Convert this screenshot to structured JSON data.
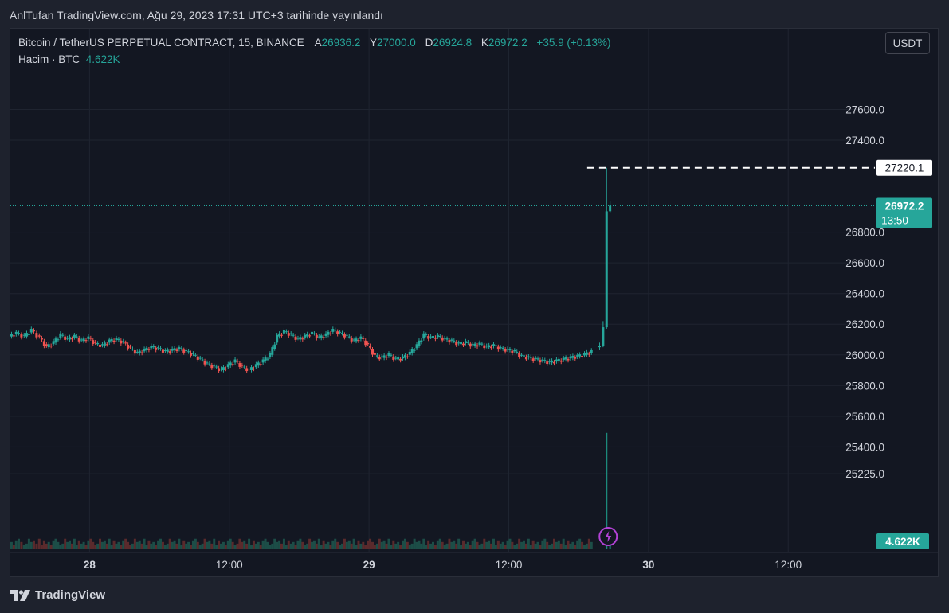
{
  "publish_line": "AnlTufan TradingView.com, Ağu 29, 2023 17:31 UTC+3 tarihinde yayınlandı",
  "legend": {
    "symbol": "Bitcoin / TetherUS PERPETUAL CONTRACT, 15, BINANCE",
    "open_label": "A",
    "open": "26936.2",
    "high_label": "Y",
    "high": "27000.0",
    "low_label": "D",
    "low": "26924.8",
    "close_label": "K",
    "close": "26972.2",
    "change": "+35.9 (+0.13%)",
    "volume_label": "Hacim · BTC",
    "volume": "4.622K"
  },
  "currency": "USDT",
  "brand": "TradingView",
  "colors": {
    "up": "#26a69a",
    "down": "#ef5350",
    "background": "#131722",
    "grid": "#1f2430",
    "text": "#d1d4dc",
    "alert_icon": "#b342d6"
  },
  "chart_data": {
    "type": "candlestick",
    "symbol": "BTCUSDT.P",
    "interval": "15",
    "exchange": "BINANCE",
    "price_ticks": [
      "27600.0",
      "27400.0",
      "26800.0",
      "26600.0",
      "26400.0",
      "26200.0",
      "26000.0",
      "25800.0",
      "25600.0",
      "25400.0",
      "25225.0"
    ],
    "price_tick_values": [
      27600,
      27400,
      26800,
      26600,
      26400,
      26200,
      26000,
      25800,
      25600,
      25400,
      25225
    ],
    "time_ticks": [
      "28",
      "12:00",
      "29",
      "12:00",
      "30",
      "12:00"
    ],
    "time_tick_hours": [
      0,
      12,
      24,
      36,
      48,
      60
    ],
    "x_range_hours": [
      -6.8,
      67.1
    ],
    "y_range": [
      24805,
      27805
    ],
    "last_price": 26972.2,
    "last_price_label": "26972.2",
    "countdown": "13:50",
    "high_line_price": 27220.1,
    "high_line_label": "27220.1",
    "volume_last_label": "4.622K",
    "grid": true,
    "price_path": [
      [
        -6.8,
        26120
      ],
      [
        -6.2,
        26140
      ],
      [
        -5.5,
        26120
      ],
      [
        -4.9,
        26160
      ],
      [
        -4.2,
        26110
      ],
      [
        -3.6,
        26050
      ],
      [
        -3.0,
        26080
      ],
      [
        -2.4,
        26130
      ],
      [
        -1.8,
        26100
      ],
      [
        -1.2,
        26120
      ],
      [
        -0.6,
        26090
      ],
      [
        0.0,
        26110
      ],
      [
        0.6,
        26070
      ],
      [
        1.2,
        26060
      ],
      [
        1.8,
        26090
      ],
      [
        2.4,
        26100
      ],
      [
        3.0,
        26080
      ],
      [
        3.6,
        26040
      ],
      [
        4.2,
        26010
      ],
      [
        4.8,
        26030
      ],
      [
        5.4,
        26050
      ],
      [
        6.0,
        26040
      ],
      [
        6.6,
        26020
      ],
      [
        7.2,
        26030
      ],
      [
        7.8,
        26040
      ],
      [
        8.4,
        26020
      ],
      [
        9.0,
        26000
      ],
      [
        9.6,
        25970
      ],
      [
        10.2,
        25940
      ],
      [
        10.8,
        25920
      ],
      [
        11.4,
        25900
      ],
      [
        12.0,
        25930
      ],
      [
        12.6,
        25960
      ],
      [
        13.2,
        25920
      ],
      [
        13.8,
        25900
      ],
      [
        14.4,
        25930
      ],
      [
        15.0,
        25960
      ],
      [
        15.6,
        26000
      ],
      [
        16.2,
        26120
      ],
      [
        16.8,
        26150
      ],
      [
        17.4,
        26130
      ],
      [
        18.0,
        26100
      ],
      [
        18.6,
        26120
      ],
      [
        19.2,
        26140
      ],
      [
        19.8,
        26110
      ],
      [
        20.4,
        26130
      ],
      [
        21.0,
        26160
      ],
      [
        21.6,
        26140
      ],
      [
        22.2,
        26120
      ],
      [
        22.8,
        26090
      ],
      [
        23.4,
        26110
      ],
      [
        24.0,
        26060
      ],
      [
        24.6,
        25990
      ],
      [
        25.2,
        25980
      ],
      [
        25.8,
        26000
      ],
      [
        26.4,
        25970
      ],
      [
        27.0,
        25980
      ],
      [
        27.6,
        26010
      ],
      [
        28.2,
        26060
      ],
      [
        28.8,
        26130
      ],
      [
        29.4,
        26110
      ],
      [
        30.0,
        26120
      ],
      [
        30.6,
        26100
      ],
      [
        31.2,
        26090
      ],
      [
        31.8,
        26070
      ],
      [
        32.4,
        26080
      ],
      [
        33.0,
        26060
      ],
      [
        33.6,
        26070
      ],
      [
        34.2,
        26050
      ],
      [
        34.8,
        26060
      ],
      [
        35.4,
        26040
      ],
      [
        36.0,
        26030
      ],
      [
        36.6,
        26020
      ],
      [
        37.2,
        25990
      ],
      [
        37.8,
        25980
      ],
      [
        38.4,
        25970
      ],
      [
        39.0,
        25960
      ],
      [
        39.6,
        25950
      ],
      [
        40.2,
        25960
      ],
      [
        40.8,
        25970
      ],
      [
        41.4,
        25980
      ],
      [
        42.0,
        25990
      ],
      [
        42.6,
        26000
      ],
      [
        43.2,
        26020
      ],
      [
        43.8,
        26050
      ],
      [
        44.1,
        26150
      ],
      [
        44.4,
        26900
      ],
      [
        44.7,
        26972.2
      ]
    ],
    "final_candles": [
      {
        "t": 43.8,
        "o": 26050,
        "h": 26080,
        "l": 26030,
        "c": 26060
      },
      {
        "t": 44.1,
        "o": 26060,
        "h": 26220,
        "l": 26050,
        "c": 26180
      },
      {
        "t": 44.4,
        "o": 26180,
        "h": 27220.1,
        "l": 26170,
        "c": 26936.2
      },
      {
        "t": 44.7,
        "o": 26936.2,
        "h": 27000.0,
        "l": 26924.8,
        "c": 26972.2
      }
    ],
    "volume_spikes": [
      {
        "t": 44.4,
        "v": 4.3
      },
      {
        "t": 44.7,
        "v": 0.6
      }
    ],
    "volume_max_k": 5.0
  }
}
